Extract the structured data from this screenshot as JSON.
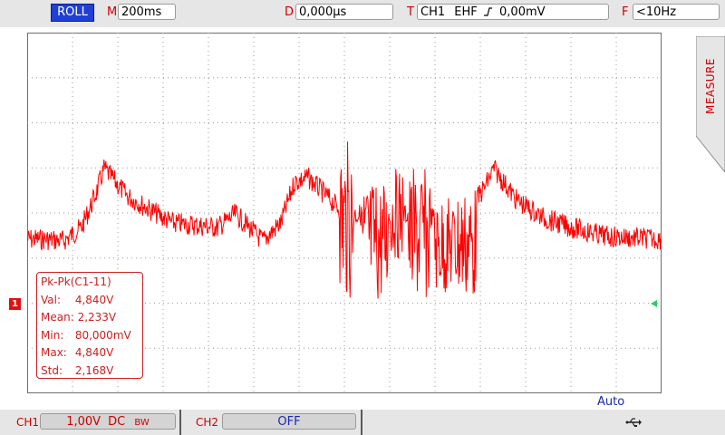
{
  "topbar": {
    "mode": "ROLL",
    "timebase": {
      "label": "M",
      "value": "200ms"
    },
    "delay": {
      "label": "D",
      "value": "0,000µs"
    },
    "trigger": {
      "label": "T",
      "source": "CH1",
      "type": "EHF",
      "slope_icon": "rising-edge-icon",
      "level": "0,00mV"
    },
    "frequency": {
      "label": "F",
      "value": "<10Hz"
    }
  },
  "side_tab": {
    "label": "MEASURE"
  },
  "waveform": {
    "channel_marker": "1",
    "color": "#ff0000",
    "trigger_marker_color": "#2ecc71"
  },
  "measurement": {
    "title": "Pk-Pk(C1-11)",
    "rows": [
      {
        "key": "Val:",
        "value": "4,840V"
      },
      {
        "key": "Mean:",
        "value": "2,233V"
      },
      {
        "key": "Min:",
        "value": "80,000mV"
      },
      {
        "key": "Max:",
        "value": "4,840V"
      },
      {
        "key": "Std:",
        "value": "2,168V"
      }
    ]
  },
  "acquisition": {
    "mode": "Auto"
  },
  "bottombar": {
    "ch1": {
      "label": "CH1",
      "value": "1,00V",
      "coupling": "DC",
      "bw": "BW"
    },
    "ch2": {
      "label": "CH2",
      "value": "OFF"
    },
    "status_icon": "usb-icon"
  },
  "colors": {
    "accent_red": "#cc0000",
    "trace": "#ff0000",
    "mode_badge": "#1f3fd6"
  }
}
